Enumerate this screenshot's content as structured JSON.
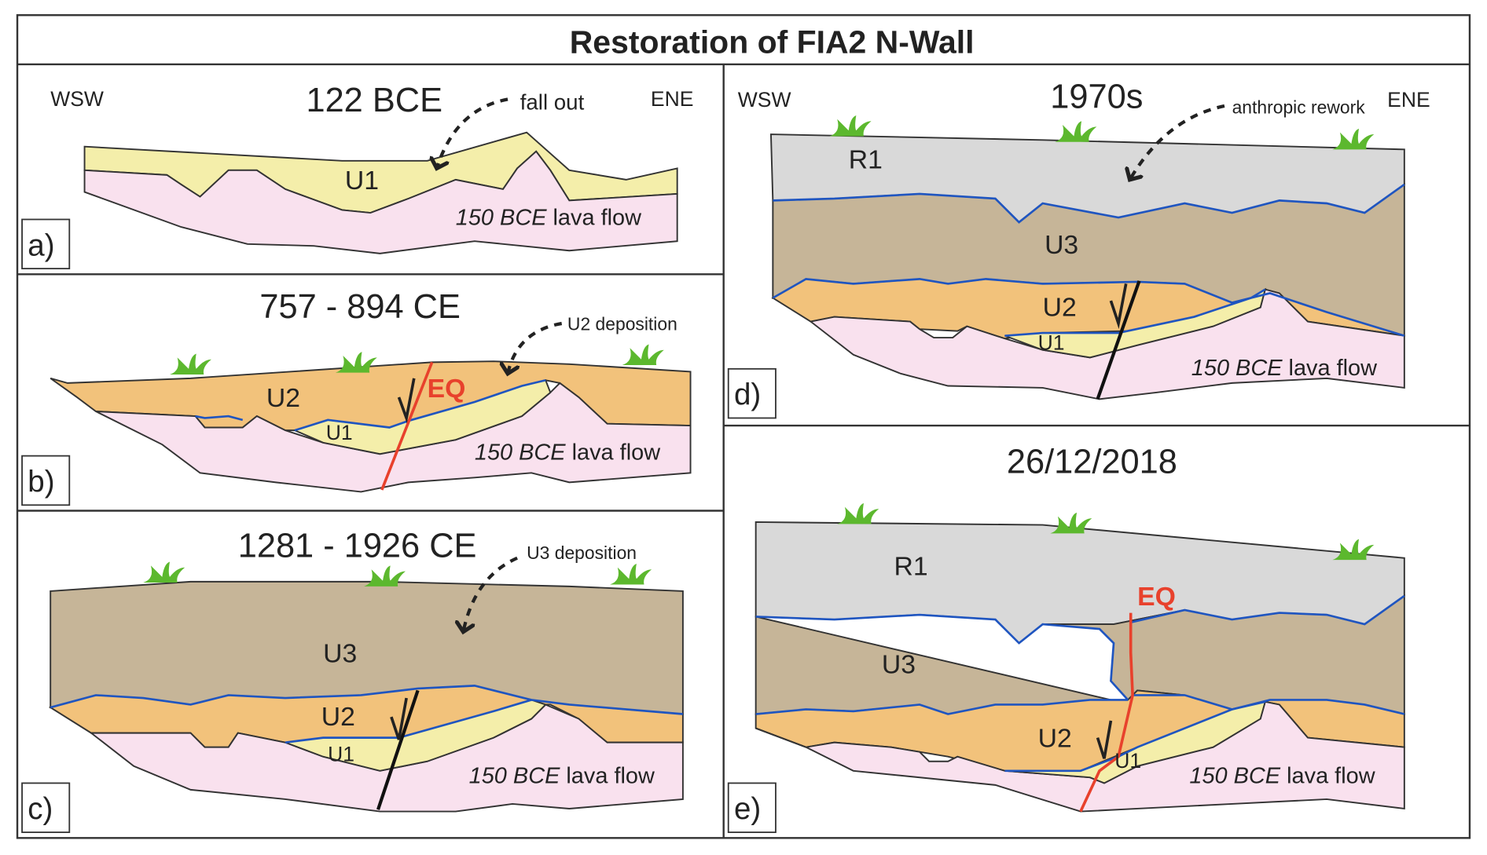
{
  "title": "Restoration of FIA2 N-Wall",
  "colors": {
    "lava": "#f9e1ee",
    "u1": "#f4eeaa",
    "u2": "#f2c27b",
    "u3": "#c6b598",
    "r1": "#d9d9d9",
    "contact": "#1f55c0",
    "eq": "#e8412c",
    "grass": "#5cb82e"
  },
  "panels": {
    "a": {
      "label": "a)",
      "date": "122 BCE",
      "west": "WSW",
      "east": "ENE",
      "note": "fall out",
      "units": [
        "U1"
      ],
      "lava_em": "150 BCE",
      "lava_rest": " lava flow"
    },
    "b": {
      "label": "b)",
      "date": "757 - 894 CE",
      "note": "U2 deposition",
      "units": [
        "U2",
        "U1"
      ],
      "eq": "EQ",
      "lava_em": "150 BCE",
      "lava_rest": " lava flow"
    },
    "c": {
      "label": "c)",
      "date": "1281 - 1926 CE",
      "note": "U3 deposition",
      "units": [
        "U3",
        "U2",
        "U1"
      ],
      "lava_em": "150 BCE",
      "lava_rest": " lava flow"
    },
    "d": {
      "label": "d)",
      "date": "1970s",
      "west": "WSW",
      "east": "ENE",
      "note": "anthropic rework",
      "units": [
        "R1",
        "U3",
        "U2",
        "U1"
      ],
      "lava_em": "150 BCE",
      "lava_rest": " lava flow"
    },
    "e": {
      "label": "e)",
      "date": "26/12/2018",
      "units": [
        "R1",
        "U3",
        "U2",
        "U1"
      ],
      "eq": "EQ",
      "lava_em": "150 BCE",
      "lava_rest": " lava flow"
    }
  }
}
